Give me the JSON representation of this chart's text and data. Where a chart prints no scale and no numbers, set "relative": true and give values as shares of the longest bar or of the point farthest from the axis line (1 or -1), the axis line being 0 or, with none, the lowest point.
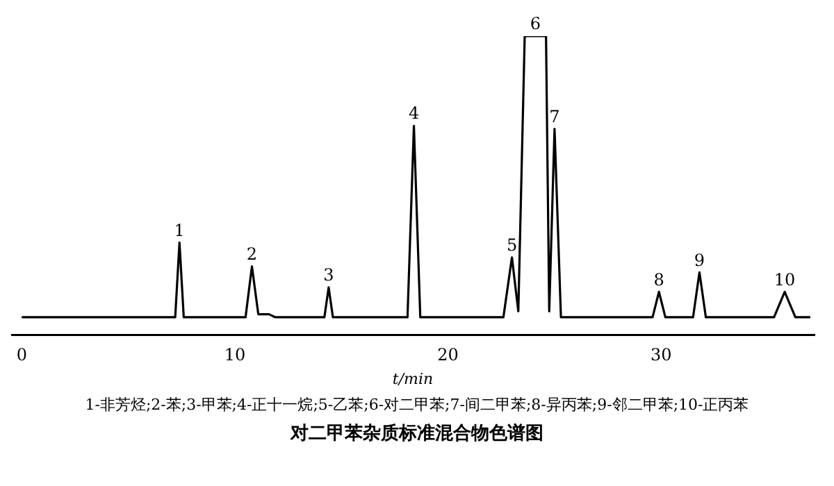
{
  "chart_data": {
    "type": "line",
    "title": "对二甲苯杂质标准混合物色谱图",
    "xlabel": "t/min",
    "relative": true,
    "color": "#000000",
    "marker": "none",
    "x": [
      0,
      7.2,
      7.4,
      7.6,
      10.5,
      10.8,
      11.1,
      11.6,
      11.9,
      14.2,
      14.4,
      14.6,
      18.1,
      18.4,
      18.7,
      22.6,
      23.0,
      23.3,
      23.6,
      24.6,
      24.75,
      25.0,
      25.3,
      29.6,
      29.9,
      30.2,
      31.5,
      31.8,
      32.1,
      35.3,
      35.8,
      36.3,
      37
    ],
    "values": [
      0.06,
      0.06,
      0.31,
      0.06,
      0.06,
      0.23,
      0.07,
      0.07,
      0.06,
      0.06,
      0.16,
      0.06,
      0.06,
      0.7,
      0.06,
      0.06,
      0.26,
      0.08,
      1,
      1,
      0.08,
      0.69,
      0.06,
      0.06,
      0.145,
      0.06,
      0.06,
      0.21,
      0.06,
      0.06,
      0.145,
      0.06,
      0.06
    ],
    "xlim": [
      -0.5,
      37.2
    ],
    "xticks": [
      0,
      10,
      20,
      30
    ],
    "annotations": [
      {
        "text": "1",
        "x": 7.4,
        "y": 0.31
      },
      {
        "text": "2",
        "x": 10.8,
        "y": 0.23
      },
      {
        "text": "3",
        "x": 14.4,
        "y": 0.16
      },
      {
        "text": "4",
        "x": 18.4,
        "y": 0.7
      },
      {
        "text": "5",
        "x": 23.0,
        "y": 0.26
      },
      {
        "text": "6",
        "x": 24.1,
        "y": 1
      },
      {
        "text": "7",
        "x": 25.0,
        "y": 0.69
      },
      {
        "text": "8",
        "x": 29.9,
        "y": 0.145
      },
      {
        "text": "9",
        "x": 31.8,
        "y": 0.21
      },
      {
        "text": "10",
        "x": 35.8,
        "y": 0.145
      },
      "1-非芳烃;2-苯;3-甲苯;4-正十一烷;5-乙苯;6-对二甲苯;7-间二甲苯;8-异丙苯;9-邻二甲苯;10-正丙苯"
    ]
  }
}
